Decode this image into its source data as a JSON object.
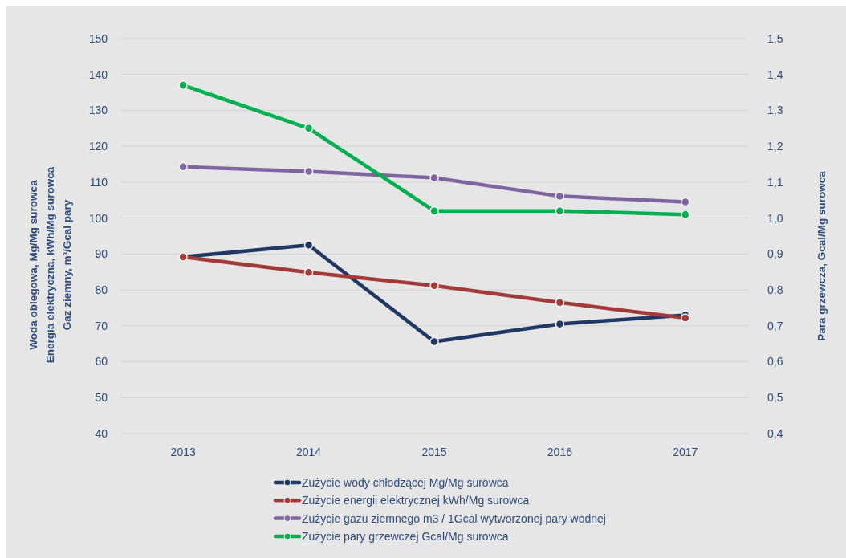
{
  "chart_data": {
    "type": "line",
    "categories": [
      "2013",
      "2014",
      "2015",
      "2016",
      "2017"
    ],
    "series": [
      {
        "name": "Zużycie wody chłodzącej Mg/Mg surowca",
        "color": "#1f3864",
        "values": [
          89.2,
          92.5,
          65.6,
          70.5,
          73.0
        ]
      },
      {
        "name": "Zużycie energii elektrycznej kWh/Mg surowca",
        "color": "#a33a3a",
        "values": [
          89.2,
          84.9,
          81.2,
          76.5,
          72.2
        ]
      },
      {
        "name": "Zużycie gazu ziemnego m3 / 1Gcal wytworzonej pary wodnej",
        "color": "#8064a2",
        "values": [
          114.3,
          113.0,
          111.2,
          106.1,
          104.5
        ]
      },
      {
        "name": "Zużycie pary grzewczej Gcal/Mg surowca",
        "color": "#00b050",
        "axis": "y2",
        "values": [
          1.37,
          1.25,
          1.02,
          1.02,
          1.01
        ]
      }
    ],
    "ylabel": "Woda obiegowa, Mg/Mg surowca\nEnergia elektryczna, kWh/Mg surowca\nGaz ziemny, m³/Gcal pary",
    "y2label": "Para grzewcza, Gcal/Mg surowca",
    "ylim": [
      40,
      150
    ],
    "yticks": [
      40,
      50,
      60,
      70,
      80,
      90,
      100,
      110,
      120,
      130,
      140,
      150
    ],
    "y2lim": [
      0.4,
      1.5
    ],
    "y2ticks": [
      {
        "value": 0.4,
        "label": "0,4"
      },
      {
        "value": 0.5,
        "label": "0,5"
      },
      {
        "value": 0.6,
        "label": "0,6"
      },
      {
        "value": 0.7,
        "label": "0,7"
      },
      {
        "value": 0.8,
        "label": "0,8"
      },
      {
        "value": 0.9,
        "label": "0,9"
      },
      {
        "value": 1.0,
        "label": "1,0"
      },
      {
        "value": 1.1,
        "label": "1,1"
      },
      {
        "value": 1.2,
        "label": "1,2"
      },
      {
        "value": 1.3,
        "label": "1,3"
      },
      {
        "value": 1.4,
        "label": "1,4"
      },
      {
        "value": 1.5,
        "label": "1,5"
      }
    ],
    "grid": "y",
    "legend": "bottom",
    "marker": "circle"
  }
}
